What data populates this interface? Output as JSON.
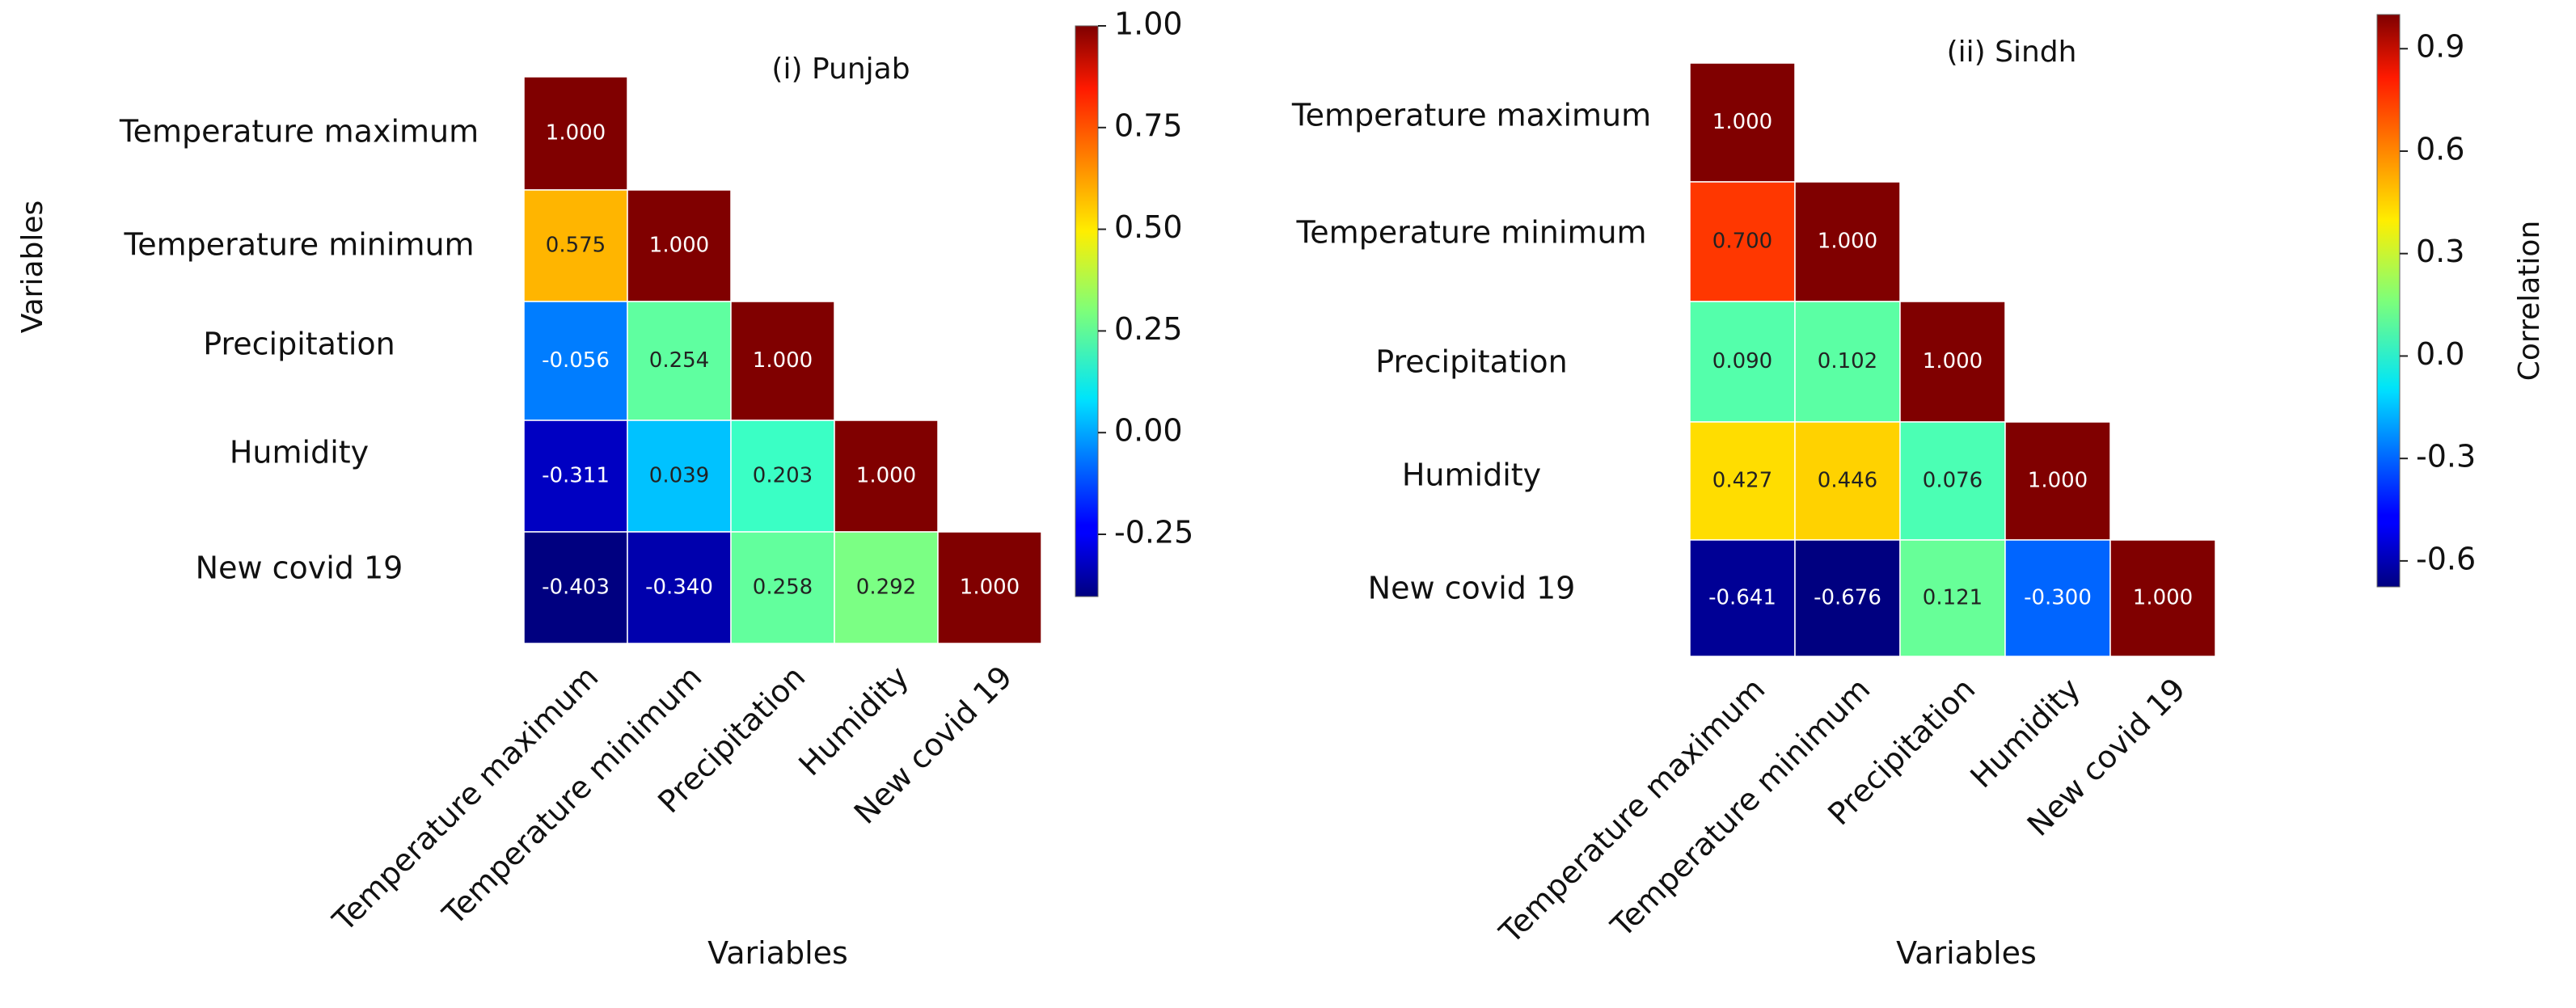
{
  "chart_data": [
    {
      "type": "heatmap",
      "title": "(i) Punjab",
      "xlabel": "Variables",
      "ylabel": "Variables",
      "variables": [
        "Temperature maximum",
        "Temperature minimum",
        "Precipitation",
        "Humidity",
        "New covid 19"
      ],
      "matrix": [
        [
          1.0,
          null,
          null,
          null,
          null
        ],
        [
          0.575,
          1.0,
          null,
          null,
          null
        ],
        [
          -0.056,
          0.254,
          1.0,
          null,
          null
        ],
        [
          -0.311,
          0.039,
          0.203,
          1.0,
          null
        ],
        [
          -0.403,
          -0.34,
          0.258,
          0.292,
          1.0
        ]
      ],
      "value_labels": [
        [
          "1.000",
          "",
          "",
          "",
          ""
        ],
        [
          "0.575",
          "1.000",
          "",
          "",
          ""
        ],
        [
          "-0.056",
          "0.254",
          "1.000",
          "",
          ""
        ],
        [
          "-0.311",
          "0.039",
          "0.203",
          "1.000",
          ""
        ],
        [
          "-0.403",
          "-0.340",
          "0.258",
          "0.292",
          "1.000"
        ]
      ],
      "colorbar": {
        "label": "",
        "range": [
          -0.403,
          1.0
        ],
        "ticks": [
          1.0,
          0.75,
          0.5,
          0.25,
          0.0,
          -0.25
        ],
        "tick_labels": [
          "1.00",
          "0.75",
          "0.50",
          "0.25",
          "0.00",
          "-0.25"
        ]
      },
      "colormap": "jet"
    },
    {
      "type": "heatmap",
      "title": "(ii) Sindh",
      "xlabel": "Variables",
      "ylabel": "",
      "variables": [
        "Temperature maximum",
        "Temperature minimum",
        "Precipitation",
        "Humidity",
        "New covid 19"
      ],
      "matrix": [
        [
          1.0,
          null,
          null,
          null,
          null
        ],
        [
          0.7,
          1.0,
          null,
          null,
          null
        ],
        [
          0.09,
          0.102,
          1.0,
          null,
          null
        ],
        [
          0.427,
          0.446,
          0.076,
          1.0,
          null
        ],
        [
          -0.641,
          -0.676,
          0.121,
          -0.3,
          1.0
        ]
      ],
      "value_labels": [
        [
          "1.000",
          "",
          "",
          "",
          ""
        ],
        [
          "0.700",
          "1.000",
          "",
          "",
          ""
        ],
        [
          "0.090",
          "0.102",
          "1.000",
          "",
          ""
        ],
        [
          "0.427",
          "0.446",
          "0.076",
          "1.000",
          ""
        ],
        [
          "-0.641",
          "-0.676",
          "0.121",
          "-0.300",
          "1.000"
        ]
      ],
      "colorbar": {
        "label": "Correlation",
        "range": [
          -0.676,
          1.0
        ],
        "ticks": [
          0.9,
          0.6,
          0.3,
          0.0,
          -0.3,
          -0.6
        ],
        "tick_labels": [
          "0.9",
          "0.6",
          "0.3",
          "0.0",
          "-0.3",
          "-0.6"
        ]
      },
      "colormap": "jet"
    }
  ]
}
